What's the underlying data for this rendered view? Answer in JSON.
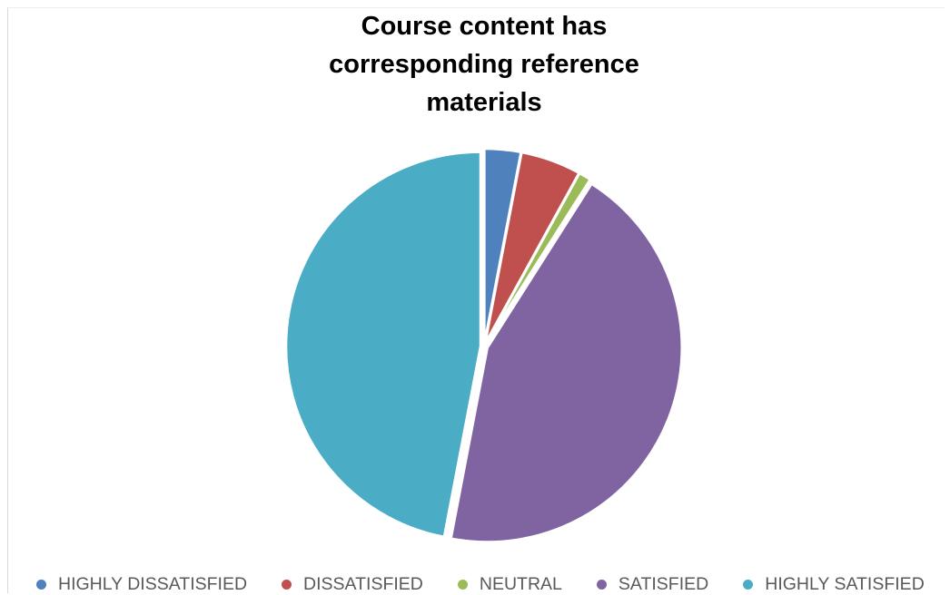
{
  "chart_data": {
    "type": "pie",
    "title": "Course content has corresponding reference materials",
    "categories": [
      "HIGHLY DISSATISFIED",
      "DISSATISFIED",
      "NEUTRAL",
      "SATISFIED",
      "HIGHLY SATISFIED"
    ],
    "values": [
      3,
      5,
      1,
      44,
      47
    ],
    "colors": [
      "#4F81BD",
      "#C0504D",
      "#9BBB59",
      "#8064A2",
      "#4BACC6"
    ],
    "legend_position": "bottom",
    "start_angle": "12 o'clock, clockwise"
  }
}
